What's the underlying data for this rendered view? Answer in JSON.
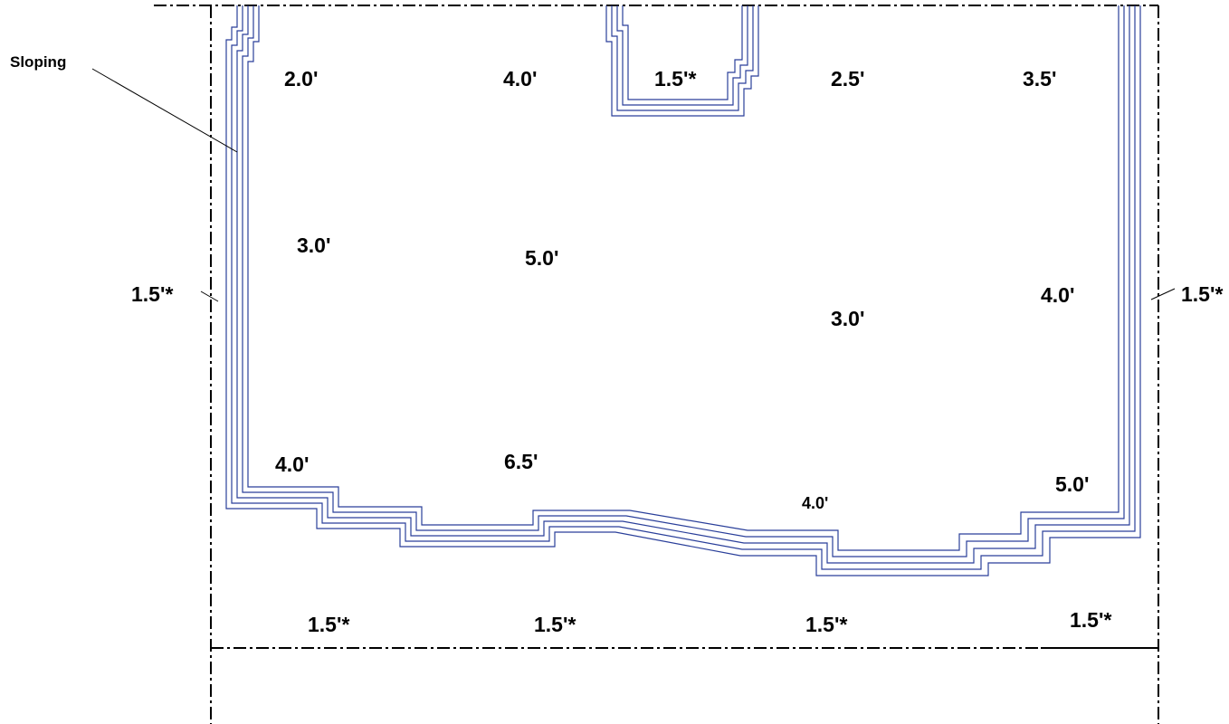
{
  "callout": {
    "label": "Sloping"
  },
  "depths": {
    "top_row": [
      "2.0'",
      "4.0'",
      "1.5'*",
      "2.5'",
      "3.5'"
    ],
    "upper_middle": [
      "3.0'",
      "5.0'"
    ],
    "center_right": [
      "3.0'",
      "4.0'"
    ],
    "lower_row": [
      "4.0'",
      "6.5'",
      "4.0'",
      "5.0'"
    ],
    "side_left": "1.5'*",
    "side_right": "1.5'*",
    "bottom_row": [
      "1.5'*",
      "1.5'*",
      "1.5'*",
      "1.5'*"
    ]
  },
  "colors": {
    "outline": "#2a3f9a",
    "boundary": "#000000"
  }
}
